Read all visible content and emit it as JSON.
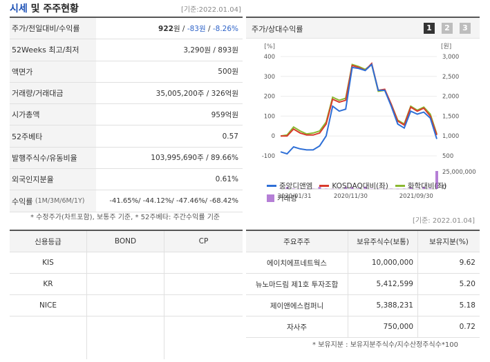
{
  "header": {
    "title_a": "시세",
    "title_b": " 및 주주현황",
    "ref_date": "[기준:2022.01.04]"
  },
  "left_rows": [
    {
      "label": "주가/전일대비/수익률",
      "price": "922",
      "unit": "원 / ",
      "change": "-83원",
      "sep": " / ",
      "rate": "-8.26%"
    },
    {
      "label": "52Weeks 최고/최저",
      "value": "3,290원 / 893원"
    },
    {
      "label": "액면가",
      "value": "500원"
    },
    {
      "label": "거래량/거래대금",
      "value": "35,005,200주 / 326억원"
    },
    {
      "label": "시가총액",
      "value": "959억원"
    },
    {
      "label": "52주베타",
      "value": "0.57"
    },
    {
      "label": "발행주식수/유동비율",
      "value": "103,995,690주 / 89.66%"
    },
    {
      "label": "외국인지분율",
      "value": "0.61%"
    },
    {
      "label": "수익률",
      "sublabel": "(1M/3M/6M/1Y)",
      "value": "-41.65%/ -44.12%/ -47.46%/ -68.42%"
    }
  ],
  "left_note": "* 수정주가(차트포함), 보통주 기준, * 52주베타: 주간수익률 기준",
  "chart_panel": {
    "title": "주가/상대수익률",
    "tabs": [
      "1",
      "2",
      "3"
    ],
    "active_tab_color": "#333333",
    "inactive_tab_color": "#bdbdbd"
  },
  "chart_data": {
    "type": "line",
    "left_unit": "[%]",
    "right_unit": "[원]",
    "left_ticks": [
      "400",
      "300",
      "200",
      "100",
      "0",
      "-100"
    ],
    "right_ticks": [
      "3,000",
      "2,500",
      "2,000",
      "1,500",
      "1,000",
      "500"
    ],
    "volume_ticks": [
      "25,000,000",
      "0"
    ],
    "x_ticks": [
      "2020/01/31",
      "2020/11/30",
      "2021/09/30"
    ],
    "ylim_left": [
      -100,
      400
    ],
    "ylim_right": [
      500,
      3000
    ],
    "series": [
      {
        "name": "중앙디앤엠",
        "color": "#2e6fd6",
        "values": [
          -80,
          -90,
          -55,
          -65,
          -70,
          -70,
          -50,
          0,
          150,
          125,
          135,
          345,
          340,
          330,
          360,
          230,
          230,
          150,
          60,
          40,
          125,
          110,
          120,
          90,
          -15
        ]
      },
      {
        "name": "KOSDAQ대비(좌)",
        "color": "#d93a2b",
        "values": [
          0,
          0,
          35,
          15,
          5,
          5,
          15,
          60,
          185,
          170,
          180,
          355,
          345,
          330,
          365,
          230,
          235,
          160,
          75,
          55,
          145,
          125,
          140,
          100,
          5
        ]
      },
      {
        "name": "화학대비(좌)",
        "color": "#8ab830",
        "values": [
          0,
          5,
          45,
          25,
          10,
          15,
          25,
          70,
          195,
          180,
          190,
          360,
          350,
          335,
          360,
          225,
          230,
          160,
          80,
          60,
          150,
          130,
          145,
          110,
          10
        ]
      }
    ],
    "volume": {
      "name": "거래량",
      "color": "#b57fd6",
      "values": [
        0.02,
        0.1,
        0.03,
        0.02,
        0.01,
        0.02,
        0.12,
        0.02,
        0.01,
        0.01,
        0.1,
        0.1,
        0.03,
        0.12,
        0.02,
        0.02,
        0.01,
        0.02,
        0.01,
        0.02,
        0.1,
        0.01,
        0.12,
        0.05,
        1.0
      ]
    }
  },
  "ref_date2": "[기준: 2022.01.04]",
  "credit": {
    "headers": [
      "신용등급",
      "BOND",
      "CP"
    ],
    "rows": [
      [
        "KIS",
        "",
        ""
      ],
      [
        "KR",
        "",
        ""
      ],
      [
        "NICE",
        "",
        ""
      ]
    ]
  },
  "shareholders": {
    "headers": [
      "주요주주",
      "보유주식수(보통)",
      "보유지분(%)"
    ],
    "rows": [
      [
        "에이치에프네트웍스",
        "10,000,000",
        "9.62"
      ],
      [
        "뉴노마드림 제1호 투자조합",
        "5,412,599",
        "5.20"
      ],
      [
        "제이앤에스컴퍼니",
        "5,388,231",
        "5.18"
      ],
      [
        "자사주",
        "750,000",
        "0.72"
      ]
    ]
  },
  "right_note": "* 보유지분 : 보유지분주식수/지수산정주식수*100"
}
